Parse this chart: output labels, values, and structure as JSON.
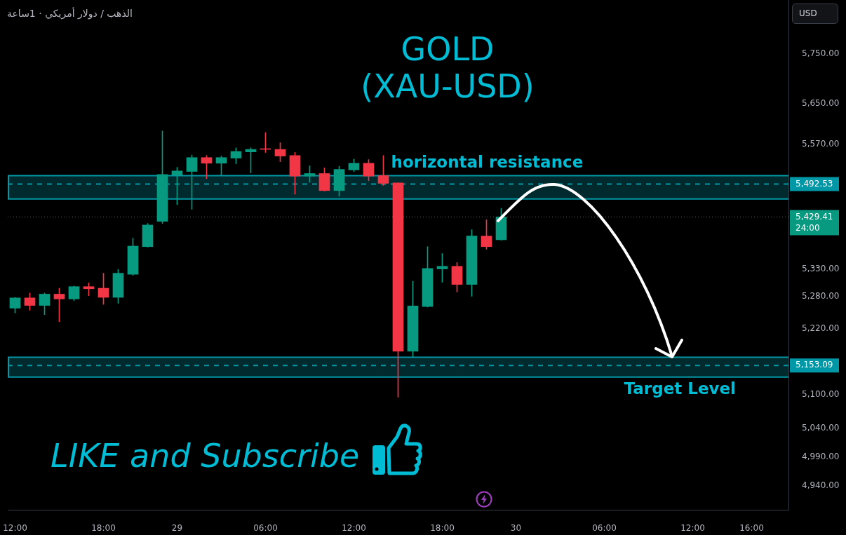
{
  "chart_data": {
    "type": "candlestick",
    "title": "GOLD\n(XAU-USD)",
    "subtitle": "الذهب / دولار أمريكي · 1ساعة",
    "ylabel": "USD",
    "categories": [
      "12:00",
      null,
      null,
      null,
      null,
      null,
      "18:00",
      null,
      null,
      null,
      null,
      "29",
      null,
      null,
      null,
      null,
      null,
      "06:00",
      null,
      null,
      null,
      null,
      null,
      "12:00",
      null,
      null,
      null,
      null,
      null,
      "18:00",
      null,
      null,
      null,
      null,
      "30",
      null,
      null,
      null,
      null,
      null,
      "06:00",
      null,
      null,
      null,
      null,
      null,
      "12:00",
      null,
      null,
      null,
      "16:00",
      null,
      null
    ],
    "ohlc": [
      [
        5258,
        5278,
        5249,
        5277
      ],
      [
        5277,
        5286,
        5254,
        5263
      ],
      [
        5263,
        5286,
        5246,
        5284
      ],
      [
        5284,
        5295,
        5233,
        5275
      ],
      [
        5275,
        5299,
        5272,
        5298
      ],
      [
        5298,
        5305,
        5281,
        5294
      ],
      [
        5295,
        5323,
        5265,
        5278
      ],
      [
        5278,
        5330,
        5267,
        5323
      ],
      [
        5321,
        5389,
        5319,
        5374
      ],
      [
        5373,
        5417,
        5372,
        5414
      ],
      [
        5421,
        5596,
        5417,
        5511
      ],
      [
        5510,
        5525,
        5453,
        5518
      ],
      [
        5517,
        5549,
        5444,
        5544
      ],
      [
        5544,
        5548,
        5503,
        5533
      ],
      [
        5533,
        5547,
        5510,
        5544
      ],
      [
        5543,
        5563,
        5532,
        5556
      ],
      [
        5555,
        5563,
        5514,
        5560
      ],
      [
        5561,
        5593,
        5554,
        5560
      ],
      [
        5560,
        5573,
        5536,
        5547
      ],
      [
        5548,
        5554,
        5473,
        5508
      ],
      [
        5508,
        5528,
        5496,
        5513
      ],
      [
        5513,
        5524,
        5479,
        5480
      ],
      [
        5480,
        5527,
        5469,
        5521
      ],
      [
        5520,
        5541,
        5517,
        5533
      ],
      [
        5533,
        5540,
        5499,
        5508
      ],
      [
        5509,
        5548,
        5490,
        5494
      ],
      [
        5495,
        5495,
        5096,
        5179
      ],
      [
        5179,
        5308,
        5169,
        5262
      ],
      [
        5261,
        5373,
        5260,
        5332
      ],
      [
        5331,
        5360,
        5306,
        5336
      ],
      [
        5336,
        5343,
        5288,
        5302
      ],
      [
        5302,
        5405,
        5280,
        5393
      ],
      [
        5393,
        5424,
        5368,
        5373
      ],
      [
        5386,
        5446,
        5385,
        5429.41
      ],
      null,
      null,
      null,
      null,
      null,
      null,
      null,
      null,
      null,
      null,
      null,
      null,
      null,
      null,
      null,
      null,
      null,
      null,
      null
    ],
    "colors": [
      "#089981",
      "#f23645",
      "#089981",
      "#f23645",
      "#089981",
      "#f23645",
      "#f23645",
      "#089981",
      "#089981",
      "#089981",
      "#089981",
      "#089981",
      "#089981",
      "#f23645",
      "#089981",
      "#089981",
      "#089981",
      "#f23645",
      "#f23645",
      "#f23645",
      "#089981",
      "#f23645",
      "#089981",
      "#089981",
      "#f23645",
      "#f23645",
      "#f23645",
      "#089981",
      "#089981",
      "#089981",
      "#f23645",
      "#089981",
      "#f23645",
      "#089981",
      null,
      null,
      null,
      null,
      null,
      null,
      null,
      null,
      null,
      null,
      null,
      null,
      null,
      null,
      null,
      null,
      null,
      null,
      null
    ],
    "log": true,
    "ylim": [
      4898,
      5860
    ],
    "yticks": [
      {
        "value": 4940,
        "label": "4,940.00"
      },
      {
        "value": 4990,
        "label": "4,990.00"
      },
      {
        "value": 5040,
        "label": "5,040.00"
      },
      {
        "value": 5100,
        "label": "5,100.00"
      },
      {
        "value": 5220,
        "label": "5,220.00"
      },
      {
        "value": 5280,
        "label": "5,280.00"
      },
      {
        "value": 5330,
        "label": "5,330.00"
      },
      {
        "value": 5570,
        "label": "5,570.00"
      },
      {
        "value": 5650,
        "label": "5,650.00"
      },
      {
        "value": 5750,
        "label": "5,750.00"
      }
    ],
    "ref_lines": [
      {
        "axis": "y",
        "value": 5492.53,
        "label": "5,492.53",
        "color": "#0097a7",
        "line_style": "dashed"
      },
      {
        "axis": "y",
        "value": 5429.41,
        "label": "5,429.41\n24:00",
        "color": "#089981",
        "line_style": "dotted"
      },
      {
        "axis": "y",
        "value": 5153.09,
        "label": "5,153.09",
        "color": "#0097a7",
        "line_style": "dashed"
      }
    ],
    "bands": [
      {
        "axis": "y",
        "from": 5464,
        "to": 5509,
        "label": "horizontal resistance",
        "color": "#0097a7"
      },
      {
        "axis": "y",
        "from": 5132,
        "to": 5168,
        "label": "Target Level",
        "color": "#0097a7"
      }
    ],
    "annotations": [
      "LIKE and Subscribe"
    ]
  }
}
